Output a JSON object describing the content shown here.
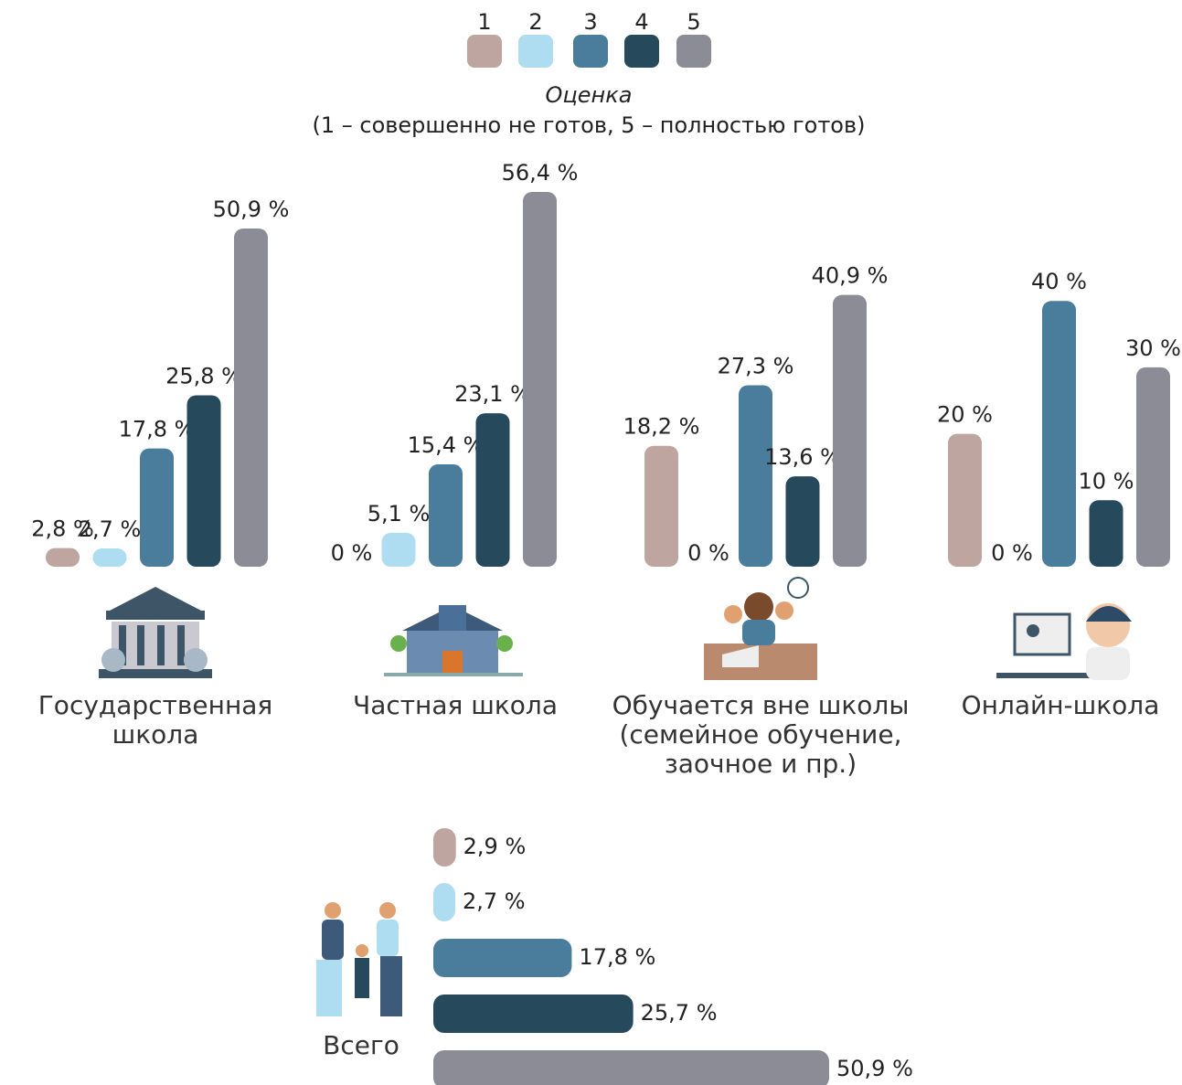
{
  "chart_data": [
    {
      "type": "bar",
      "legend_title": "Оценка",
      "legend_note": "(1 – совершенно не готов, 5 – полностью готов)",
      "categories": [
        "Государственная школа",
        "Частная школа",
        "Обучается вне школы (семейное обучение, заочное и пр.)",
        "Онлайн-школа"
      ],
      "series": [
        {
          "name": "1",
          "color": "#bfa5a0",
          "values": [
            2.8,
            0,
            18.2,
            20
          ],
          "value_labels": [
            "2,8 %",
            "0 %",
            "18,2 %",
            "20 %"
          ]
        },
        {
          "name": "2",
          "color": "#aedcf0",
          "values": [
            2.7,
            5.1,
            0,
            0
          ],
          "value_labels": [
            "2,7 %",
            "5,1 %",
            "0 %",
            "0 %"
          ]
        },
        {
          "name": "3",
          "color": "#4a7d9b",
          "values": [
            17.8,
            15.4,
            27.3,
            40
          ],
          "value_labels": [
            "17,8 %",
            "15,4 %",
            "27,3 %",
            "40 %"
          ]
        },
        {
          "name": "4",
          "color": "#264a5c",
          "values": [
            25.8,
            23.1,
            13.6,
            10
          ],
          "value_labels": [
            "25,8 %",
            "23,1 %",
            "13,6 %",
            "10 %"
          ]
        },
        {
          "name": "5",
          "color": "#8c8c96",
          "values": [
            50.9,
            56.4,
            40.9,
            30
          ],
          "value_labels": [
            "50,9 %",
            "56,4 %",
            "40,9 %",
            "30 %"
          ]
        }
      ]
    },
    {
      "type": "barh",
      "title": "Всего",
      "series": [
        {
          "color": "#bfa5a0",
          "values": [
            2.9
          ],
          "value_labels": [
            "2,9 %"
          ]
        },
        {
          "color": "#aedcf0",
          "values": [
            2.7
          ],
          "value_labels": [
            "2,7 %"
          ]
        },
        {
          "color": "#4a7d9b",
          "values": [
            17.8
          ],
          "value_labels": [
            "17,8 %"
          ]
        },
        {
          "color": "#264a5c",
          "values": [
            25.7
          ],
          "value_labels": [
            "25,7 %"
          ]
        },
        {
          "color": "#8c8c96",
          "values": [
            50.9
          ],
          "value_labels": [
            "50,9 %"
          ]
        }
      ]
    }
  ]
}
